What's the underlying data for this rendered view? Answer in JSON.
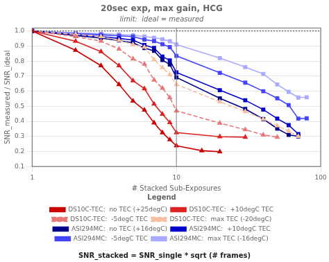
{
  "chart_data": {
    "type": "line",
    "title": "20sec exp, max gain, HCG",
    "subtitle": "limit:  ideal = measured",
    "xlabel": "# Stacked Sub-Exposures",
    "ylabel": "SNR_measured / SNR_ideal",
    "annotations": [
      {
        "text": "SNR_stacked = SNR_single * sqrt (# frames)"
      }
    ],
    "log": "x",
    "xlim": [
      1,
      100
    ],
    "xticks": [
      1,
      10,
      100
    ],
    "ylim": [
      0.1,
      1.02
    ],
    "yticks": [
      0.1,
      0.2,
      0.3,
      0.4,
      0.5,
      0.6,
      0.7,
      0.8,
      0.9,
      {
        "value": 1,
        "label": "1.0"
      }
    ],
    "grid": true,
    "legend": "bottom",
    "legend_title": "Legend",
    "reference_lines": [
      {
        "axis": "y",
        "value": 1.0,
        "color": "#000000",
        "line_style": "dotted"
      },
      {
        "axis": "x",
        "value": 10,
        "color": "#888888",
        "line_style": "solid"
      }
    ],
    "series": [
      {
        "name": "DS10C-TEC:  no TEC (+25degC)",
        "color": "#cc0000",
        "marker": "triangle",
        "line_style": "solid",
        "x": [
          1,
          2,
          3,
          4,
          5,
          6,
          7,
          8,
          9,
          10,
          15,
          20
        ],
        "values": [
          1.0,
          0.872,
          0.77,
          0.645,
          0.535,
          0.475,
          0.39,
          0.325,
          0.278,
          0.238,
          0.205,
          0.198
        ]
      },
      {
        "name": "DS10C-TEC:  +10degC TEC",
        "color": "#dd2222",
        "marker": "triangle",
        "line_style": "solid",
        "x": [
          1,
          2,
          3,
          4,
          5,
          6,
          7,
          8,
          9,
          10,
          20,
          30
        ],
        "values": [
          1.0,
          0.932,
          0.863,
          0.77,
          0.67,
          0.617,
          0.515,
          0.448,
          0.392,
          0.325,
          0.298,
          0.295
        ]
      },
      {
        "name": "DS10C-TEC:  -5degC TEC",
        "color": "#e87878",
        "marker": "triangle",
        "line_style": "dashed",
        "x": [
          1,
          2,
          3,
          4,
          5,
          6,
          7,
          8,
          9,
          10,
          20,
          30,
          40,
          50
        ],
        "values": [
          1.0,
          0.963,
          0.933,
          0.88,
          0.815,
          0.78,
          0.675,
          0.62,
          0.557,
          0.47,
          0.388,
          0.345,
          0.31,
          0.295
        ]
      },
      {
        "name": "DS10C-TEC:  max TEC (-20degC)",
        "color": "#f5c0a0",
        "marker": "triangle",
        "line_style": "dashed",
        "x": [
          1,
          2,
          3,
          4,
          5,
          6,
          7,
          8,
          9,
          10,
          20,
          30,
          40,
          50,
          60,
          70
        ],
        "values": [
          1.0,
          0.978,
          0.963,
          0.938,
          0.91,
          0.893,
          0.81,
          0.757,
          0.71,
          0.645,
          0.53,
          0.465,
          0.415,
          0.37,
          0.335,
          0.3
        ]
      },
      {
        "name": "ASI294MC:  no TEC (+16degC)",
        "color": "#000088",
        "marker": "square",
        "line_style": "solid",
        "x": [
          1,
          2,
          3,
          4,
          5,
          6,
          7,
          8,
          9,
          10,
          20,
          30,
          40,
          50,
          60,
          70
        ],
        "values": [
          1.0,
          0.97,
          0.953,
          0.937,
          0.922,
          0.887,
          0.868,
          0.807,
          0.778,
          0.692,
          0.553,
          0.482,
          0.415,
          0.352,
          0.31,
          0.3
        ]
      },
      {
        "name": "ASI294MC:  +10degC TEC",
        "color": "#0000cc",
        "marker": "square",
        "line_style": "solid",
        "x": [
          1,
          2,
          3,
          4,
          5,
          6,
          7,
          8,
          9,
          10,
          20,
          30,
          40,
          50,
          60,
          70
        ],
        "values": [
          1.0,
          0.973,
          0.963,
          0.951,
          0.94,
          0.907,
          0.887,
          0.83,
          0.805,
          0.725,
          0.607,
          0.54,
          0.478,
          0.418,
          0.375,
          0.315
        ]
      },
      {
        "name": "ASI294MC:  -5degC TEC",
        "color": "#4444ff",
        "marker": "square",
        "line_style": "solid",
        "x": [
          1,
          2,
          3,
          4,
          5,
          6,
          7,
          8,
          9,
          10,
          20,
          30,
          40,
          50,
          60,
          70,
          80
        ],
        "values": [
          1.0,
          0.982,
          0.975,
          0.968,
          0.963,
          0.943,
          0.933,
          0.912,
          0.893,
          0.835,
          0.722,
          0.657,
          0.6,
          0.553,
          0.508,
          0.418,
          0.42
        ]
      },
      {
        "name": "ASI294MC:  max TEC (-16degC)",
        "color": "#aaaaff",
        "marker": "square",
        "line_style": "solid",
        "x": [
          1,
          2,
          3,
          4,
          5,
          6,
          7,
          8,
          9,
          10,
          20,
          30,
          40,
          50,
          60,
          70,
          80
        ],
        "values": [
          1.0,
          0.988,
          0.982,
          0.977,
          0.972,
          0.963,
          0.956,
          0.945,
          0.932,
          0.91,
          0.82,
          0.76,
          0.715,
          0.645,
          0.596,
          0.558,
          0.56
        ]
      }
    ]
  }
}
